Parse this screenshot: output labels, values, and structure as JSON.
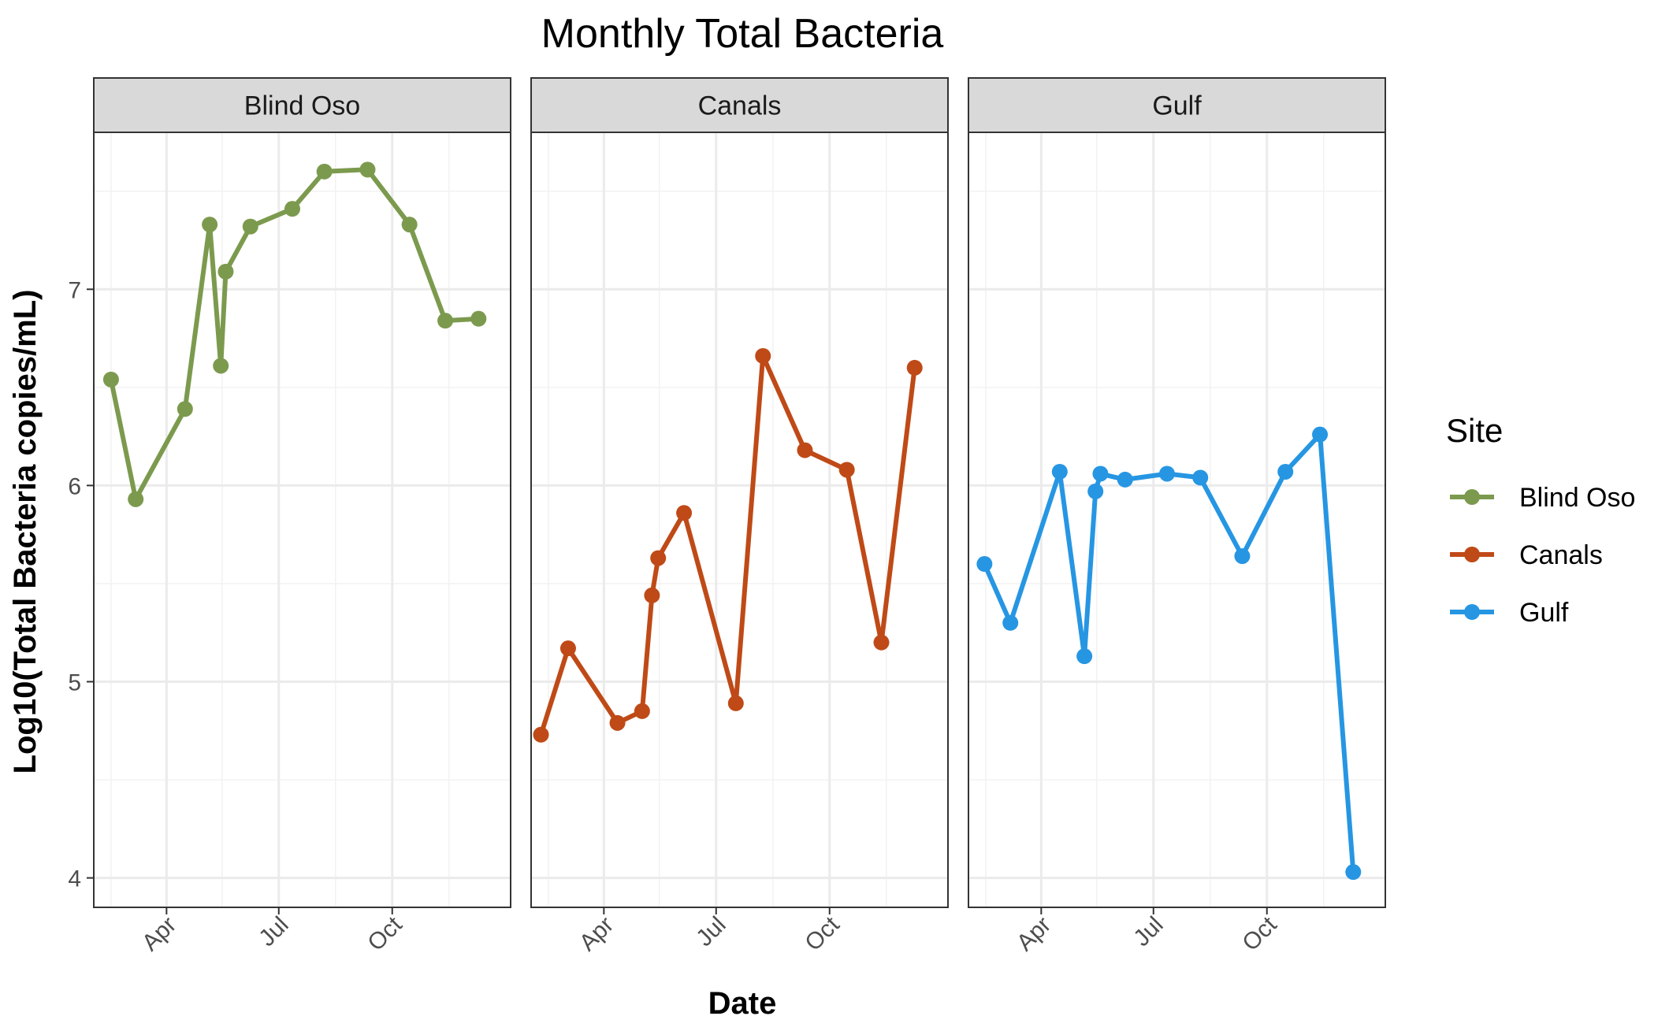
{
  "chart_data": {
    "type": "line",
    "title": "Monthly Total Bacteria",
    "xlabel": "Date",
    "ylabel": "Log10(Total Bacteria copies/mL)",
    "facet_by": "Site",
    "x_tick_labels": [
      "Apr",
      "Jul",
      "Oct"
    ],
    "y_ticks": [
      4,
      5,
      6,
      7
    ],
    "ylim": [
      3.85,
      7.8
    ],
    "xlim": [
      "2021-02-01",
      "2022-01-05"
    ],
    "grid": true,
    "legend": {
      "title": "Site",
      "placement": "right"
    },
    "series": [
      {
        "name": "Blind Oso",
        "color": "#7c9a4e",
        "points": [
          {
            "x": "2021-02-15",
            "y": 6.54
          },
          {
            "x": "2021-03-07",
            "y": 5.93
          },
          {
            "x": "2021-04-16",
            "y": 6.39
          },
          {
            "x": "2021-05-06",
            "y": 7.33
          },
          {
            "x": "2021-05-15",
            "y": 6.61
          },
          {
            "x": "2021-05-19",
            "y": 7.09
          },
          {
            "x": "2021-06-08",
            "y": 7.32
          },
          {
            "x": "2021-07-12",
            "y": 7.41
          },
          {
            "x": "2021-08-07",
            "y": 7.6
          },
          {
            "x": "2021-09-11",
            "y": 7.61
          },
          {
            "x": "2021-10-15",
            "y": 7.33
          },
          {
            "x": "2021-11-13",
            "y": 6.84
          },
          {
            "x": "2021-12-10",
            "y": 6.85
          }
        ]
      },
      {
        "name": "Canals",
        "color": "#bf4a17",
        "points": [
          {
            "x": "2021-02-09",
            "y": 4.73
          },
          {
            "x": "2021-03-03",
            "y": 5.17
          },
          {
            "x": "2021-04-12",
            "y": 4.79
          },
          {
            "x": "2021-05-02",
            "y": 4.85
          },
          {
            "x": "2021-05-10",
            "y": 5.44
          },
          {
            "x": "2021-05-15",
            "y": 5.63
          },
          {
            "x": "2021-06-05",
            "y": 5.86
          },
          {
            "x": "2021-07-17",
            "y": 4.89
          },
          {
            "x": "2021-08-08",
            "y": 6.66
          },
          {
            "x": "2021-09-11",
            "y": 6.18
          },
          {
            "x": "2021-10-15",
            "y": 6.08
          },
          {
            "x": "2021-11-12",
            "y": 5.2
          },
          {
            "x": "2021-12-09",
            "y": 6.6
          }
        ]
      },
      {
        "name": "Gulf",
        "color": "#2696e3",
        "points": [
          {
            "x": "2021-02-14",
            "y": 5.6
          },
          {
            "x": "2021-03-07",
            "y": 5.3
          },
          {
            "x": "2021-04-16",
            "y": 6.07
          },
          {
            "x": "2021-05-06",
            "y": 5.13
          },
          {
            "x": "2021-05-15",
            "y": 5.97
          },
          {
            "x": "2021-05-19",
            "y": 6.06
          },
          {
            "x": "2021-06-08",
            "y": 6.03
          },
          {
            "x": "2021-07-12",
            "y": 6.06
          },
          {
            "x": "2021-08-08",
            "y": 6.04
          },
          {
            "x": "2021-09-11",
            "y": 5.64
          },
          {
            "x": "2021-10-16",
            "y": 6.07
          },
          {
            "x": "2021-11-13",
            "y": 6.26
          },
          {
            "x": "2021-12-10",
            "y": 4.03
          }
        ]
      }
    ]
  }
}
